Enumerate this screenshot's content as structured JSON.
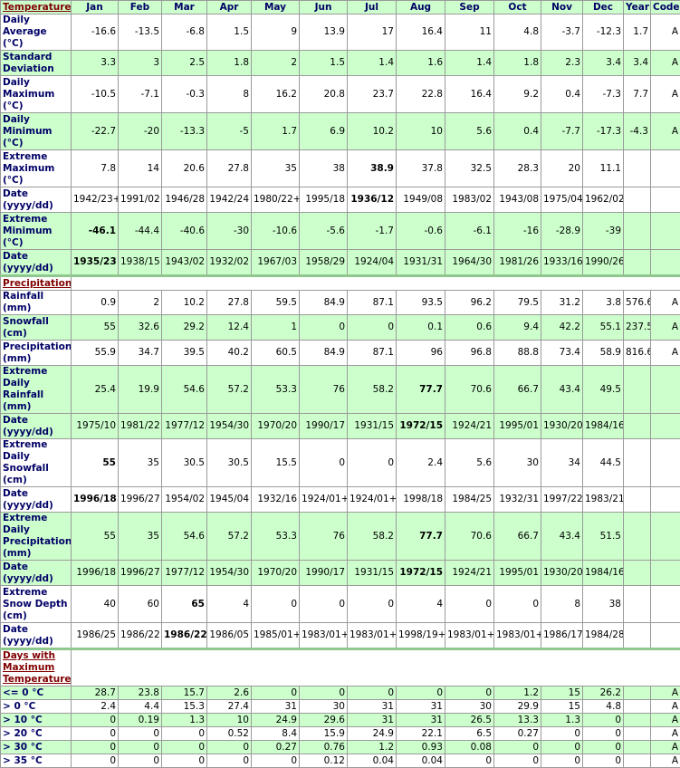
{
  "table": {
    "columns": [
      "Jan",
      "Feb",
      "Mar",
      "Apr",
      "May",
      "Jun",
      "Jul",
      "Aug",
      "Sep",
      "Oct",
      "Nov",
      "Dec",
      "Year",
      "Code"
    ],
    "sections": [
      {
        "title": "Temperature:",
        "rows": [
          {
            "label": "Daily Average (°C)",
            "lines": 2,
            "green": false,
            "cells": [
              "-16.6",
              "-13.5",
              "-6.8",
              "1.5",
              "9",
              "13.9",
              "17",
              "16.4",
              "11",
              "4.8",
              "-3.7",
              "-12.3",
              "1.7",
              "A"
            ]
          },
          {
            "label": "Standard Deviation",
            "lines": 2,
            "green": true,
            "cells": [
              "3.3",
              "3",
              "2.5",
              "1.8",
              "2",
              "1.5",
              "1.4",
              "1.6",
              "1.4",
              "1.8",
              "2.3",
              "3.4",
              "3.4",
              "A"
            ]
          },
          {
            "label": "Daily Maximum (°C)",
            "lines": 3,
            "green": false,
            "cells": [
              "-10.5",
              "-7.1",
              "-0.3",
              "8",
              "16.2",
              "20.8",
              "23.7",
              "22.8",
              "16.4",
              "9.2",
              "0.4",
              "-7.3",
              "7.7",
              "A"
            ]
          },
          {
            "label": "Daily Minimum (°C)",
            "lines": 3,
            "green": true,
            "cells": [
              "-22.7",
              "-20",
              "-13.3",
              "-5",
              "1.7",
              "6.9",
              "10.2",
              "10",
              "5.6",
              "0.4",
              "-7.7",
              "-17.3",
              "-4.3",
              "A"
            ]
          },
          {
            "label": "Extreme Maximum (°C)",
            "lines": 3,
            "green": false,
            "bold": [
              6
            ],
            "cells": [
              "7.8",
              "14",
              "20.6",
              "27.8",
              "35",
              "38",
              "38.9",
              "37.8",
              "32.5",
              "28.3",
              "20",
              "11.1",
              null,
              null
            ]
          },
          {
            "label": "Date (yyyy/dd)",
            "lines": 2,
            "green": false,
            "bold": [
              6
            ],
            "cells": [
              "1942/23+",
              "1991/02",
              "1946/28",
              "1942/24",
              "1980/22+",
              "1995/18",
              "1936/12",
              "1949/08",
              "1983/02",
              "1943/08",
              "1975/04",
              "1962/02",
              null,
              null
            ]
          },
          {
            "label": "Extreme Minimum (°C)",
            "lines": 3,
            "green": true,
            "bold": [
              0
            ],
            "cells": [
              "-46.1",
              "-44.4",
              "-40.6",
              "-30",
              "-10.6",
              "-5.6",
              "-1.7",
              "-0.6",
              "-6.1",
              "-16",
              "-28.9",
              "-39",
              null,
              null
            ]
          },
          {
            "label": "Date (yyyy/dd)",
            "lines": 2,
            "green": true,
            "bold": [
              0
            ],
            "cells": [
              "1935/23",
              "1938/15",
              "1943/02",
              "1932/02",
              "1967/03",
              "1958/29",
              "1924/04",
              "1931/31",
              "1964/30",
              "1981/26",
              "1933/16",
              "1990/26",
              null,
              null
            ]
          }
        ]
      },
      {
        "title": "Precipitation:",
        "rows": [
          {
            "label": "Rainfall (mm)",
            "lines": 1,
            "green": false,
            "cells": [
              "0.9",
              "2",
              "10.2",
              "27.8",
              "59.5",
              "84.9",
              "87.1",
              "93.5",
              "96.2",
              "79.5",
              "31.2",
              "3.8",
              "576.6",
              "A"
            ]
          },
          {
            "label": "Snowfall (cm)",
            "lines": 2,
            "green": true,
            "cells": [
              "55",
              "32.6",
              "29.2",
              "12.4",
              "1",
              "0",
              "0",
              "0.1",
              "0.6",
              "9.4",
              "42.2",
              "55.1",
              "237.5",
              "A"
            ]
          },
          {
            "label": "Precipitation (mm)",
            "lines": 2,
            "green": false,
            "cells": [
              "55.9",
              "34.7",
              "39.5",
              "40.2",
              "60.5",
              "84.9",
              "87.1",
              "96",
              "96.8",
              "88.8",
              "73.4",
              "58.9",
              "816.6",
              "A"
            ]
          },
          {
            "label": "Extreme Daily Rainfall (mm)",
            "lines": 2,
            "green": true,
            "bold": [
              7
            ],
            "cells": [
              "25.4",
              "19.9",
              "54.6",
              "57.2",
              "53.3",
              "76",
              "58.2",
              "77.7",
              "70.6",
              "66.7",
              "43.4",
              "49.5",
              null,
              null
            ]
          },
          {
            "label": "Date (yyyy/dd)",
            "lines": 2,
            "green": true,
            "bold": [
              7
            ],
            "cells": [
              "1975/10",
              "1981/22",
              "1977/12",
              "1954/30",
              "1970/20",
              "1990/17",
              "1931/15",
              "1972/15",
              "1924/21",
              "1995/01",
              "1930/20",
              "1984/16",
              null,
              null
            ]
          },
          {
            "label": "Extreme Daily Snowfall (cm)",
            "lines": 3,
            "green": false,
            "bold": [
              0
            ],
            "cells": [
              "55",
              "35",
              "30.5",
              "30.5",
              "15.5",
              "0",
              "0",
              "2.4",
              "5.6",
              "30",
              "34",
              "44.5",
              null,
              null
            ]
          },
          {
            "label": "Date (yyyy/dd)",
            "lines": 2,
            "green": false,
            "bold": [
              0
            ],
            "cells": [
              "1996/18",
              "1996/27",
              "1954/02",
              "1945/04",
              "1932/16",
              "1924/01+",
              "1924/01+",
              "1998/18",
              "1984/25",
              "1932/31",
              "1997/22",
              "1983/21",
              null,
              null
            ]
          },
          {
            "label": "Extreme Daily Precipitation (mm)",
            "lines": 3,
            "green": true,
            "bold": [
              7
            ],
            "cells": [
              "55",
              "35",
              "54.6",
              "57.2",
              "53.3",
              "76",
              "58.2",
              "77.7",
              "70.6",
              "66.7",
              "43.4",
              "51.5",
              null,
              null
            ]
          },
          {
            "label": "Date (yyyy/dd)",
            "lines": 2,
            "green": true,
            "bold": [
              7
            ],
            "cells": [
              "1996/18",
              "1996/27",
              "1977/12",
              "1954/30",
              "1970/20",
              "1990/17",
              "1931/15",
              "1972/15",
              "1924/21",
              "1995/01",
              "1930/20",
              "1984/16",
              null,
              null
            ]
          },
          {
            "label": "Extreme Snow Depth (cm)",
            "lines": 3,
            "green": false,
            "bold": [
              2
            ],
            "cells": [
              "40",
              "60",
              "65",
              "4",
              "0",
              "0",
              "0",
              "4",
              "0",
              "0",
              "8",
              "38",
              null,
              null
            ]
          },
          {
            "label": "Date (yyyy/dd)",
            "lines": 2,
            "green": false,
            "bold": [
              2
            ],
            "cells": [
              "1986/25",
              "1986/22",
              "1986/22",
              "1986/05",
              "1985/01+",
              "1983/01+",
              "1983/01+",
              "1998/19+",
              "1983/01+",
              "1983/01+",
              "1986/17",
              "1984/28",
              null,
              null
            ]
          }
        ]
      },
      {
        "title": "Days with Maximum Temperature:",
        "rows": [
          {
            "label": "<= 0 °C",
            "lines": 1,
            "green": true,
            "cells": [
              "28.7",
              "23.8",
              "15.7",
              "2.6",
              "0",
              "0",
              "0",
              "0",
              "0",
              "1.2",
              "15",
              "26.2",
              null,
              "A"
            ]
          },
          {
            "label": "> 0 °C",
            "lines": 1,
            "green": false,
            "cells": [
              "2.4",
              "4.4",
              "15.3",
              "27.4",
              "31",
              "30",
              "31",
              "31",
              "30",
              "29.9",
              "15",
              "4.8",
              null,
              "A"
            ]
          },
          {
            "label": "> 10 °C",
            "lines": 1,
            "green": true,
            "cells": [
              "0",
              "0.19",
              "1.3",
              "10",
              "24.9",
              "29.6",
              "31",
              "31",
              "26.5",
              "13.3",
              "1.3",
              "0",
              null,
              "A"
            ]
          },
          {
            "label": "> 20 °C",
            "lines": 1,
            "green": false,
            "cells": [
              "0",
              "0",
              "0",
              "0.52",
              "8.4",
              "15.9",
              "24.9",
              "22.1",
              "6.5",
              "0.27",
              "0",
              "0",
              null,
              "A"
            ]
          },
          {
            "label": "> 30 °C",
            "lines": 1,
            "green": true,
            "cells": [
              "0",
              "0",
              "0",
              "0",
              "0.27",
              "0.76",
              "1.2",
              "0.93",
              "0.08",
              "0",
              "0",
              "0",
              null,
              "A"
            ]
          },
          {
            "label": "> 35 °C",
            "lines": 1,
            "green": false,
            "cells": [
              "0",
              "0",
              "0",
              "0",
              "0",
              "0.12",
              "0.04",
              "0.04",
              "0",
              "0",
              "0",
              "0",
              null,
              "A"
            ]
          }
        ]
      }
    ]
  }
}
